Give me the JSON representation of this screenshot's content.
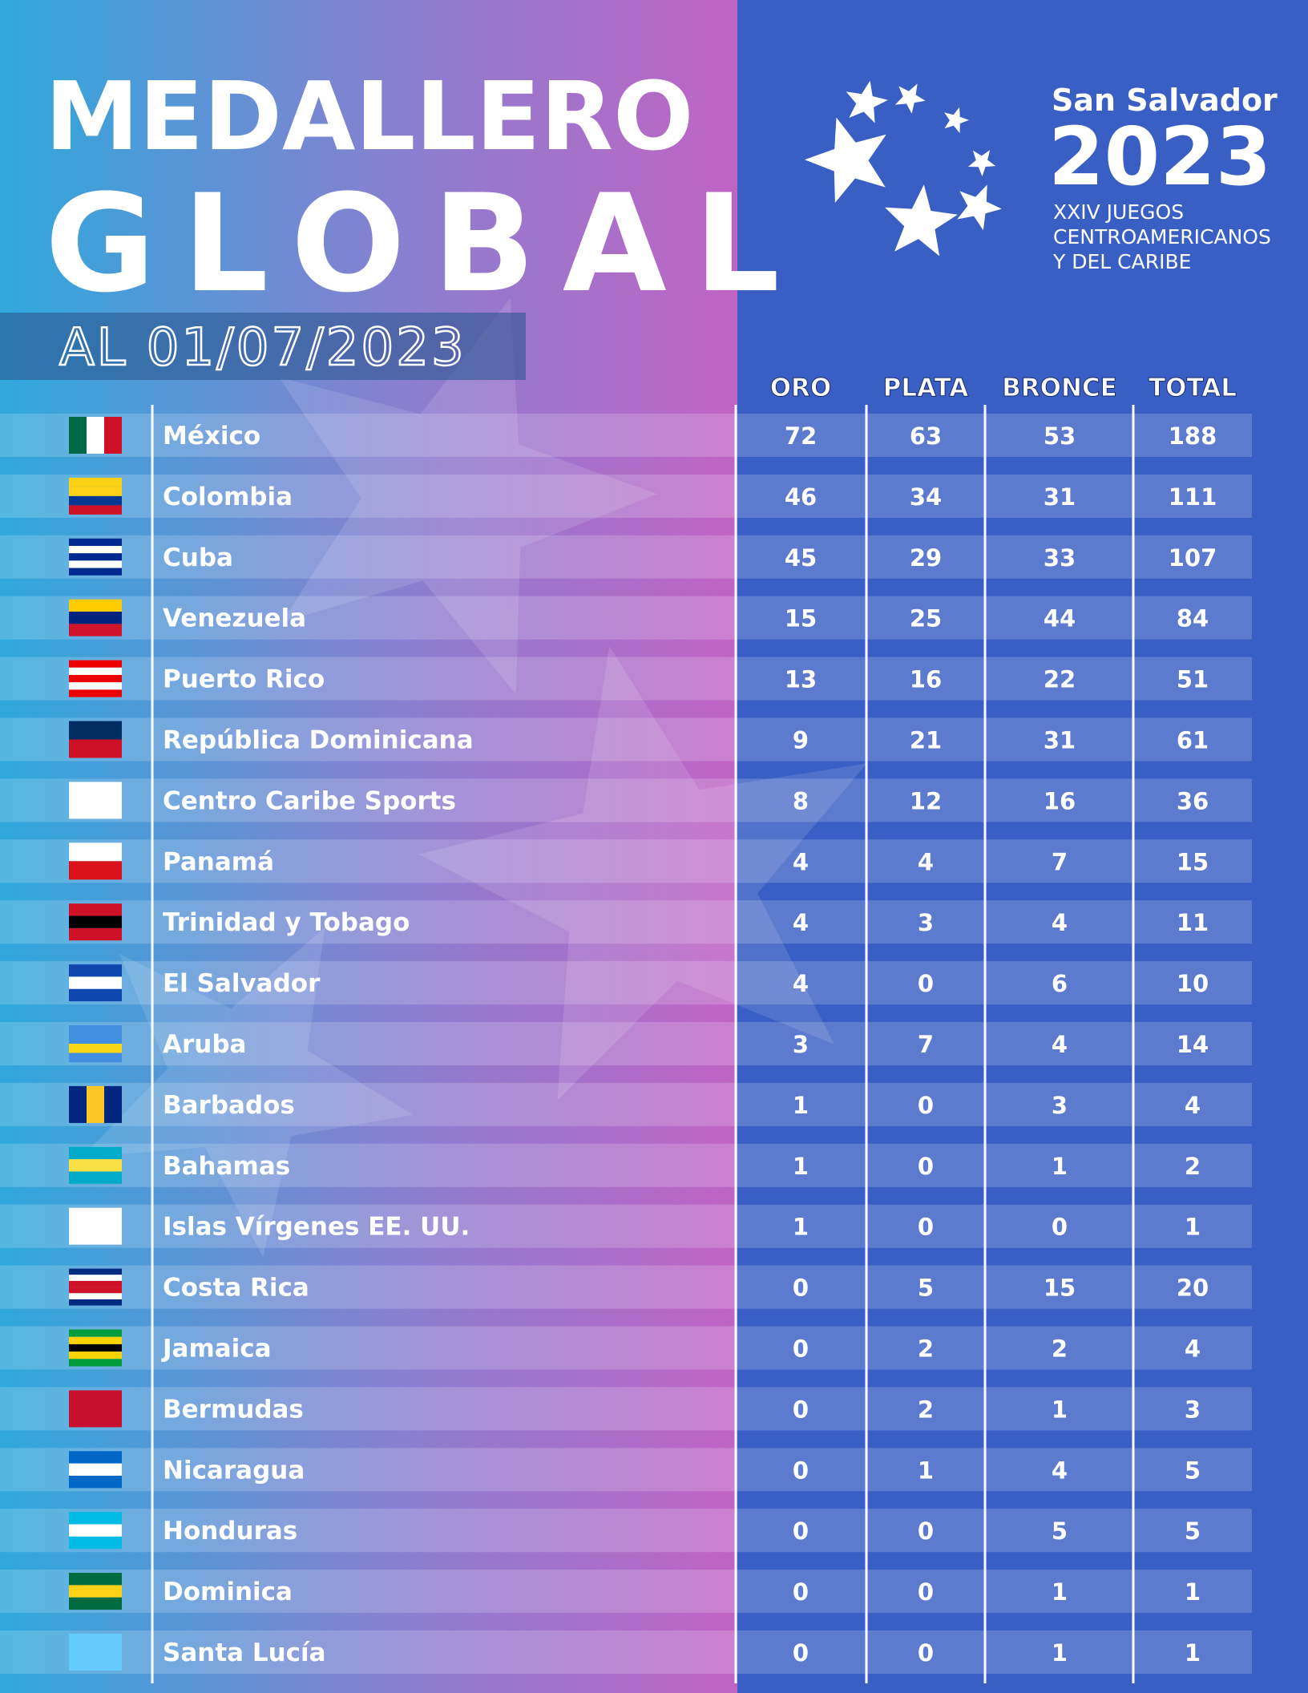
{
  "header": {
    "title_line1": "MEDALLERO",
    "title_line2": "GLOBAL",
    "date": "AL 01/07/2023"
  },
  "logo": {
    "city": "San Salvador",
    "year": "2023",
    "lines": [
      "XXIV JUEGOS",
      "CENTROAMERICANOS",
      "Y DEL CARIBE"
    ]
  },
  "table": {
    "columns": [
      "ORO",
      "PLATA",
      "BRONCE",
      "TOTAL"
    ],
    "rows": [
      [
        "México",
        72,
        63,
        53,
        188
      ],
      [
        "Colombia",
        46,
        34,
        31,
        111
      ],
      [
        "Cuba",
        45,
        29,
        33,
        107
      ],
      [
        "Venezuela",
        15,
        25,
        44,
        84
      ],
      [
        "Puerto Rico",
        13,
        16,
        22,
        51
      ],
      [
        "República Dominicana",
        9,
        21,
        31,
        61
      ],
      [
        "Centro Caribe Sports",
        8,
        12,
        16,
        36
      ],
      [
        "Panamá",
        4,
        4,
        7,
        15
      ],
      [
        "Trinidad y Tobago",
        4,
        3,
        4,
        11
      ],
      [
        "El Salvador",
        4,
        0,
        6,
        10
      ],
      [
        "Aruba",
        3,
        7,
        4,
        14
      ],
      [
        "Barbados",
        1,
        0,
        3,
        4
      ],
      [
        "Bahamas",
        1,
        0,
        1,
        2
      ],
      [
        "Islas Vírgenes EE. UU.",
        1,
        0,
        0,
        1
      ],
      [
        "Costa Rica",
        0,
        5,
        15,
        20
      ],
      [
        "Jamaica",
        0,
        2,
        2,
        4
      ],
      [
        "Bermudas",
        0,
        2,
        1,
        3
      ],
      [
        "Nicaragua",
        0,
        1,
        4,
        5
      ],
      [
        "Honduras",
        0,
        0,
        5,
        5
      ],
      [
        "Dominica",
        0,
        0,
        1,
        1
      ],
      [
        "Santa Lucía",
        0,
        0,
        1,
        1
      ]
    ]
  }
}
